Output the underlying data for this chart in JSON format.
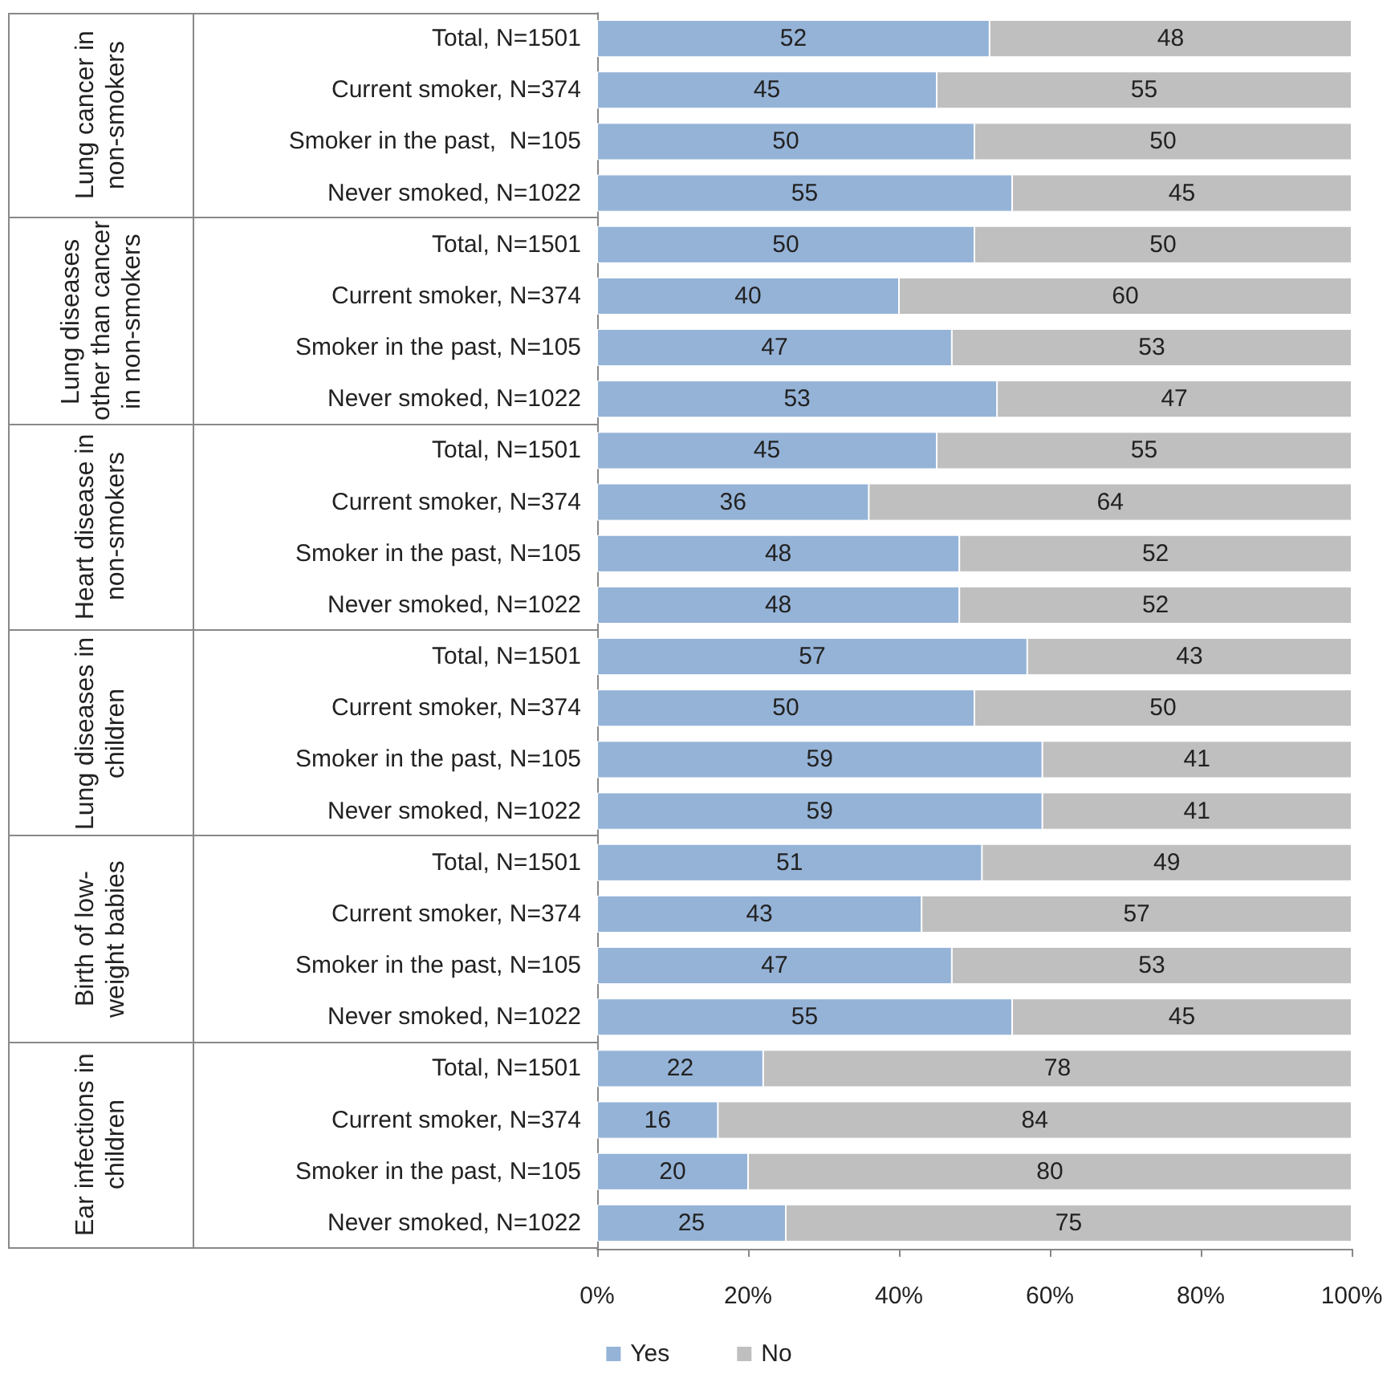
{
  "chart_data": {
    "type": "bar",
    "orientation": "horizontal",
    "stacked": true,
    "data_labels": true,
    "legend": "bottom",
    "grid": false,
    "categories": [
      "Total, N=1501",
      "Current smoker, N=374",
      "Smoker in the past,  N=105",
      "Never smoked, N=1022",
      "Total, N=1501",
      "Current smoker, N=374",
      "Smoker in the past, N=105",
      "Never smoked, N=1022",
      "Total, N=1501",
      "Current smoker, N=374",
      "Smoker in the past, N=105",
      "Never smoked, N=1022",
      "Total, N=1501",
      "Current smoker, N=374",
      "Smoker in the past, N=105",
      "Never smoked, N=1022",
      "Total, N=1501",
      "Current smoker, N=374",
      "Smoker in the past, N=105",
      "Never smoked, N=1022",
      "Total, N=1501",
      "Current smoker, N=374",
      "Smoker in the past, N=105",
      "Never smoked, N=1022"
    ],
    "annotations": [
      "Lung cancer in non-smokers",
      "Lung diseases other than cancer in non-smokers",
      "Heart disease in non-smokers",
      "Lung diseases in children",
      "Birth of low-weight babies",
      "Ear infections in children"
    ],
    "series": [
      {
        "name": "Yes",
        "color": "#95b3d7",
        "values": [
          52,
          45,
          50,
          55,
          50,
          40,
          47,
          53,
          45,
          36,
          48,
          48,
          57,
          50,
          59,
          59,
          51,
          43,
          47,
          55,
          22,
          16,
          20,
          25
        ]
      },
      {
        "name": "No",
        "color": "#bfbfbf",
        "values": [
          48,
          55,
          50,
          45,
          50,
          60,
          53,
          47,
          55,
          64,
          52,
          52,
          43,
          50,
          41,
          41,
          49,
          57,
          53,
          45,
          78,
          84,
          80,
          75
        ]
      }
    ],
    "xlim": [
      0,
      100
    ],
    "xticks": [
      {
        "value": 0,
        "label": "0%"
      },
      {
        "value": 20,
        "label": "20%"
      },
      {
        "value": 40,
        "label": "40%"
      },
      {
        "value": 60,
        "label": "60%"
      },
      {
        "value": 80,
        "label": "80%"
      },
      {
        "value": 100,
        "label": "100%"
      }
    ]
  }
}
